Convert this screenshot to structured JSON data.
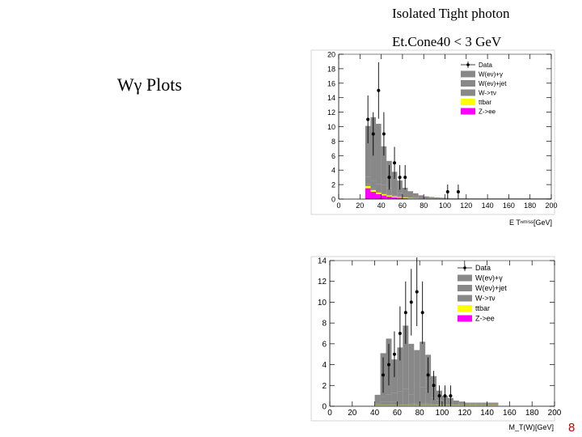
{
  "slide": {
    "title_line1": "Isolated Tight photon",
    "title_line2": "Et.Cone40 < 3 GeV",
    "side_label": "Wγ  Plots",
    "page_number": "8"
  },
  "colors": {
    "W(ev)+γ": "#00ee00",
    "W(ev)+jet": "#ff0000",
    "W->τv": "#5a1ee6",
    "ttbar": "#ffff00",
    "Z->ee": "#ff00ff",
    "Data": "#000000"
  },
  "chart_data": [
    {
      "type": "bar",
      "xlabel": "E  Tⁿᵐⁱˢˢ[GeV]",
      "ylabel": "",
      "xlim": [
        0,
        200
      ],
      "ylim": [
        0,
        20
      ],
      "xticks": [
        0,
        20,
        40,
        60,
        80,
        100,
        120,
        140,
        160,
        180,
        200
      ],
      "yticks": [
        0,
        2,
        4,
        6,
        8,
        10,
        12,
        14,
        16,
        18,
        20
      ],
      "bin_width": 5,
      "legend": [
        "Data",
        "W(eν)+γ",
        "W(eν)+jet",
        "W->τν",
        "ttbar",
        "Z->ee"
      ],
      "legend_position": "top-right",
      "series": [
        {
          "name": "Z->ee",
          "x": [
            25,
            30,
            35,
            40,
            45,
            50,
            55,
            60,
            65,
            70,
            75,
            80,
            85,
            90,
            95,
            100,
            105,
            110,
            115,
            120,
            125,
            130,
            135,
            140,
            145,
            150,
            155,
            160,
            165,
            170,
            175,
            180,
            185,
            190,
            195
          ],
          "values": [
            1.5,
            1.0,
            0.7,
            0.5,
            0.35,
            0.25,
            0.18,
            0.12,
            0.08,
            0.06,
            0.05,
            0.04,
            0.03,
            0.03,
            0.02,
            0.02,
            0.02,
            0.02,
            0.02,
            0.02,
            0.02,
            0.02,
            0.02,
            0.02,
            0.02,
            0.02,
            0.02,
            0.02,
            0.02,
            0.02,
            0.02,
            0.02,
            0.02,
            0.02,
            0.02
          ]
        },
        {
          "name": "ttbar",
          "x": [
            25,
            30,
            35,
            40,
            45,
            50,
            55,
            60,
            65,
            70,
            75,
            80,
            85,
            90,
            95,
            100,
            105,
            110,
            115,
            120,
            125,
            130,
            135,
            140,
            145,
            150,
            155,
            160,
            165,
            170,
            175,
            180,
            185,
            190,
            195
          ],
          "values": [
            0.3,
            0.25,
            0.2,
            0.18,
            0.15,
            0.12,
            0.1,
            0.08,
            0.06,
            0.05,
            0.04,
            0.03,
            0.03,
            0.02,
            0.02,
            0.02,
            0.02,
            0.02,
            0.02,
            0.02,
            0.02,
            0.02,
            0.02,
            0.02,
            0.02,
            0.02,
            0.02,
            0.02,
            0.02,
            0.02,
            0.02,
            0.02,
            0.02,
            0.02,
            0.02
          ]
        },
        {
          "name": "W->τν",
          "x": [
            25,
            30,
            35,
            40,
            45,
            50,
            55,
            60,
            65,
            70,
            75,
            80,
            85,
            90,
            95,
            100,
            105,
            110,
            115,
            120,
            125,
            130,
            135,
            140,
            145,
            150,
            155,
            160,
            165,
            170,
            175,
            180,
            185,
            190,
            195
          ],
          "values": [
            0.3,
            0.25,
            0.2,
            0.15,
            0.12,
            0.1,
            0.08,
            0.06,
            0.05,
            0.04,
            0.03,
            0.02,
            0.02,
            0.02,
            0.02,
            0.01,
            0.01,
            0.01,
            0.01,
            0.01,
            0.01,
            0.01,
            0.01,
            0.01,
            0.01,
            0.01,
            0.01,
            0.01,
            0.01,
            0.01,
            0.01,
            0.01,
            0.01,
            0.01,
            0.01
          ]
        },
        {
          "name": "W(eν)+jet",
          "x": [
            25,
            30,
            35,
            40,
            45,
            50,
            55,
            60,
            65,
            70,
            75,
            80,
            85,
            90,
            95,
            100,
            105,
            110,
            115,
            120,
            125,
            130,
            135,
            140,
            145,
            150,
            155,
            160,
            165,
            170,
            175,
            180,
            185,
            190,
            195
          ],
          "values": [
            1.0,
            1.0,
            1.0,
            1.15,
            0.85,
            0.7,
            0.5,
            0.3,
            0.2,
            0.15,
            0.1,
            0.08,
            0.06,
            0.05,
            0.04,
            0.03,
            0.02,
            0.02,
            0.02,
            0.02,
            0.02,
            0.02,
            0.02,
            0.02,
            0.02,
            0.02,
            0.02,
            0.02,
            0.02,
            0.02,
            0.02,
            0.02,
            0.02,
            0.02,
            0.02
          ]
        },
        {
          "name": "W(eν)+γ",
          "x": [
            25,
            30,
            35,
            40,
            45,
            50,
            55,
            60,
            65,
            70,
            75,
            80,
            85,
            90,
            95,
            100,
            105,
            110,
            115,
            120,
            125,
            130,
            135,
            140,
            145,
            150,
            155,
            160,
            165,
            170,
            175,
            180,
            185,
            190,
            195
          ],
          "values": [
            7.0,
            8.8,
            8.3,
            5.3,
            3.8,
            2.6,
            1.7,
            1.0,
            0.7,
            0.5,
            0.3,
            0.2,
            0.15,
            0.1,
            0.08,
            0.06,
            0.05,
            0.04,
            0.03,
            0.02,
            0.02,
            0.02,
            0.02,
            0.02,
            0.02,
            0.02,
            0.02,
            0.02,
            0.02,
            0.02,
            0.02,
            0.02,
            0.02,
            0.02,
            0.02
          ]
        },
        {
          "name": "Data",
          "kind": "points",
          "x": [
            27.5,
            32.5,
            37.5,
            42.5,
            47.5,
            52.5,
            57.5,
            62.5,
            102.5,
            112.5
          ],
          "values": [
            11,
            9,
            15,
            9,
            3,
            5,
            3,
            3,
            1,
            1
          ],
          "errors": [
            3.3,
            3.0,
            3.9,
            3.0,
            1.7,
            2.2,
            1.7,
            1.7,
            1.0,
            1.0
          ]
        }
      ]
    },
    {
      "type": "bar",
      "xlabel": "M_T(W)[GeV]",
      "ylabel": "",
      "xlim": [
        0,
        200
      ],
      "ylim": [
        0,
        14
      ],
      "xticks": [
        0,
        20,
        40,
        60,
        80,
        100,
        120,
        140,
        160,
        180,
        200
      ],
      "yticks": [
        0,
        2,
        4,
        6,
        8,
        10,
        12,
        14
      ],
      "bin_width": 5,
      "legend": [
        "Data",
        "W(eν)+γ",
        "W(eν)+jet",
        "W->τν",
        "ttbar",
        "Z->ee"
      ],
      "legend_position": "top-right",
      "series": [
        {
          "name": "Z->ee",
          "x": [
            40,
            45,
            50,
            55,
            60,
            65,
            70,
            75,
            80,
            85,
            90,
            95,
            100,
            105,
            110,
            115,
            120,
            125,
            130,
            135,
            140,
            145
          ],
          "values": [
            0.05,
            0.05,
            0.05,
            0.05,
            0.05,
            0.05,
            0.05,
            0.05,
            0.05,
            0.05,
            0.05,
            0.05,
            0.05,
            0.05,
            0.05,
            0.05,
            0.05,
            0.05,
            0.05,
            0.05,
            0.05,
            0.05
          ]
        },
        {
          "name": "ttbar",
          "x": [
            40,
            45,
            50,
            55,
            60,
            65,
            70,
            75,
            80,
            85,
            90,
            95,
            100,
            105,
            110,
            115,
            120,
            125,
            130,
            135,
            140,
            145
          ],
          "values": [
            0.05,
            0.05,
            0.05,
            0.05,
            0.05,
            0.05,
            0.05,
            0.05,
            0.05,
            0.05,
            0.05,
            0.05,
            0.05,
            0.05,
            0.05,
            0.05,
            0.05,
            0.05,
            0.05,
            0.05,
            0.05,
            0.05
          ]
        },
        {
          "name": "W->τν",
          "x": [
            40,
            45,
            50,
            55,
            60,
            65,
            70,
            75,
            80,
            85,
            90,
            95,
            100,
            105,
            110,
            115,
            120,
            125,
            130,
            135,
            140,
            145
          ],
          "values": [
            0.2,
            0.3,
            0.3,
            0.3,
            0.25,
            0.25,
            0.2,
            0.2,
            0.2,
            0.15,
            0.1,
            0.1,
            0.1,
            0.1,
            0.05,
            0.05,
            0.05,
            0.05,
            0.05,
            0.05,
            0.05,
            0.05
          ]
        },
        {
          "name": "W(eν)+jet",
          "x": [
            40,
            45,
            50,
            55,
            60,
            65,
            70,
            75,
            80,
            85,
            90,
            95,
            100,
            105,
            110,
            115,
            120,
            125,
            130,
            135,
            140,
            145
          ],
          "values": [
            0.4,
            0.5,
            0.7,
            0.9,
            1.1,
            1.3,
            0.8,
            1.1,
            1.5,
            1.3,
            0.6,
            0.4,
            0.3,
            0.3,
            0.2,
            0.15,
            0.1,
            0.1,
            0.1,
            0.1,
            0.1,
            0.1
          ]
        },
        {
          "name": "W(eν)+γ",
          "x": [
            40,
            45,
            50,
            55,
            60,
            65,
            70,
            75,
            80,
            85,
            90,
            95,
            100,
            105,
            110,
            115,
            120,
            125,
            130,
            135,
            140,
            145
          ],
          "values": [
            0.4,
            4.2,
            5.4,
            3.2,
            4.2,
            6.1,
            4.9,
            4.0,
            4.4,
            3.4,
            2.1,
            0.9,
            0.5,
            0.3,
            0.2,
            0.15,
            0.1,
            0.1,
            0.1,
            0.1,
            0.1,
            0.1
          ]
        },
        {
          "name": "Data",
          "kind": "points",
          "x": [
            47.5,
            52.5,
            57.5,
            62.5,
            67.5,
            72.5,
            77.5,
            82.5,
            87.5,
            92.5,
            97.5,
            102.5,
            107.5
          ],
          "values": [
            3,
            4,
            5,
            7,
            9,
            10,
            11,
            9,
            3,
            2,
            1,
            1,
            1
          ],
          "errors": [
            1.7,
            2.0,
            2.2,
            2.6,
            3.0,
            3.2,
            3.3,
            3.0,
            1.7,
            1.4,
            1.0,
            1.0,
            1.0
          ]
        }
      ]
    }
  ]
}
